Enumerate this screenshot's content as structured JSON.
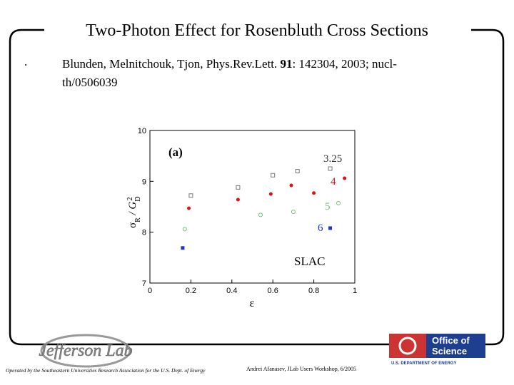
{
  "header": {
    "title": "Two-Photon Effect for Rosenbluth Cross Sections"
  },
  "bullets": [
    {
      "marker": ".",
      "parts": [
        "Blunden, Melnitchouk, Tjon, Phys.Rev.Lett. ",
        "91",
        ": 142304, 2003; nucl-th/0506039"
      ]
    }
  ],
  "chart_data": {
    "type": "scatter",
    "panel_label": "(a)",
    "annotation": "SLAC",
    "xlabel": "ε",
    "ylabel_parts": [
      "σ",
      "R",
      " / G",
      "D",
      "2"
    ],
    "xlim": [
      0,
      1
    ],
    "ylim": [
      7,
      10
    ],
    "xticks": [
      0,
      0.2,
      0.4,
      0.6,
      0.8,
      1
    ],
    "yticks": [
      7,
      8,
      9,
      10
    ],
    "series": [
      {
        "name": "3.25",
        "color": "#777777",
        "marker": "open-square",
        "x": [
          0.2,
          0.43,
          0.6,
          0.72,
          0.88
        ],
        "values": [
          8.72,
          8.88,
          9.12,
          9.2,
          9.25
        ]
      },
      {
        "name": "4",
        "color": "#dd1111",
        "marker": "dot",
        "x": [
          0.19,
          0.43,
          0.59,
          0.69,
          0.8,
          0.95
        ],
        "values": [
          8.47,
          8.64,
          8.75,
          8.92,
          8.77,
          9.06
        ]
      },
      {
        "name": "5",
        "color": "#77bb77",
        "marker": "open-circle",
        "x": [
          0.17,
          0.54,
          0.7,
          0.92
        ],
        "values": [
          8.06,
          8.34,
          8.4,
          8.57
        ]
      },
      {
        "name": "6",
        "color": "#2233cc",
        "marker": "square",
        "x": [
          0.16,
          0.88
        ],
        "values": [
          7.69,
          8.08
        ]
      }
    ]
  },
  "footer": {
    "lab_logo": "Jefferson Lab",
    "operator": "Operated by the Southeastern Universities Research Association for the U.S. Dept. of Energy",
    "credit": "Andrei Afanasev, JLab Users Workshop, 6/2005",
    "office_logo": [
      "Office of",
      "Science",
      "U.S. DEPARTMENT OF ENERGY"
    ]
  }
}
